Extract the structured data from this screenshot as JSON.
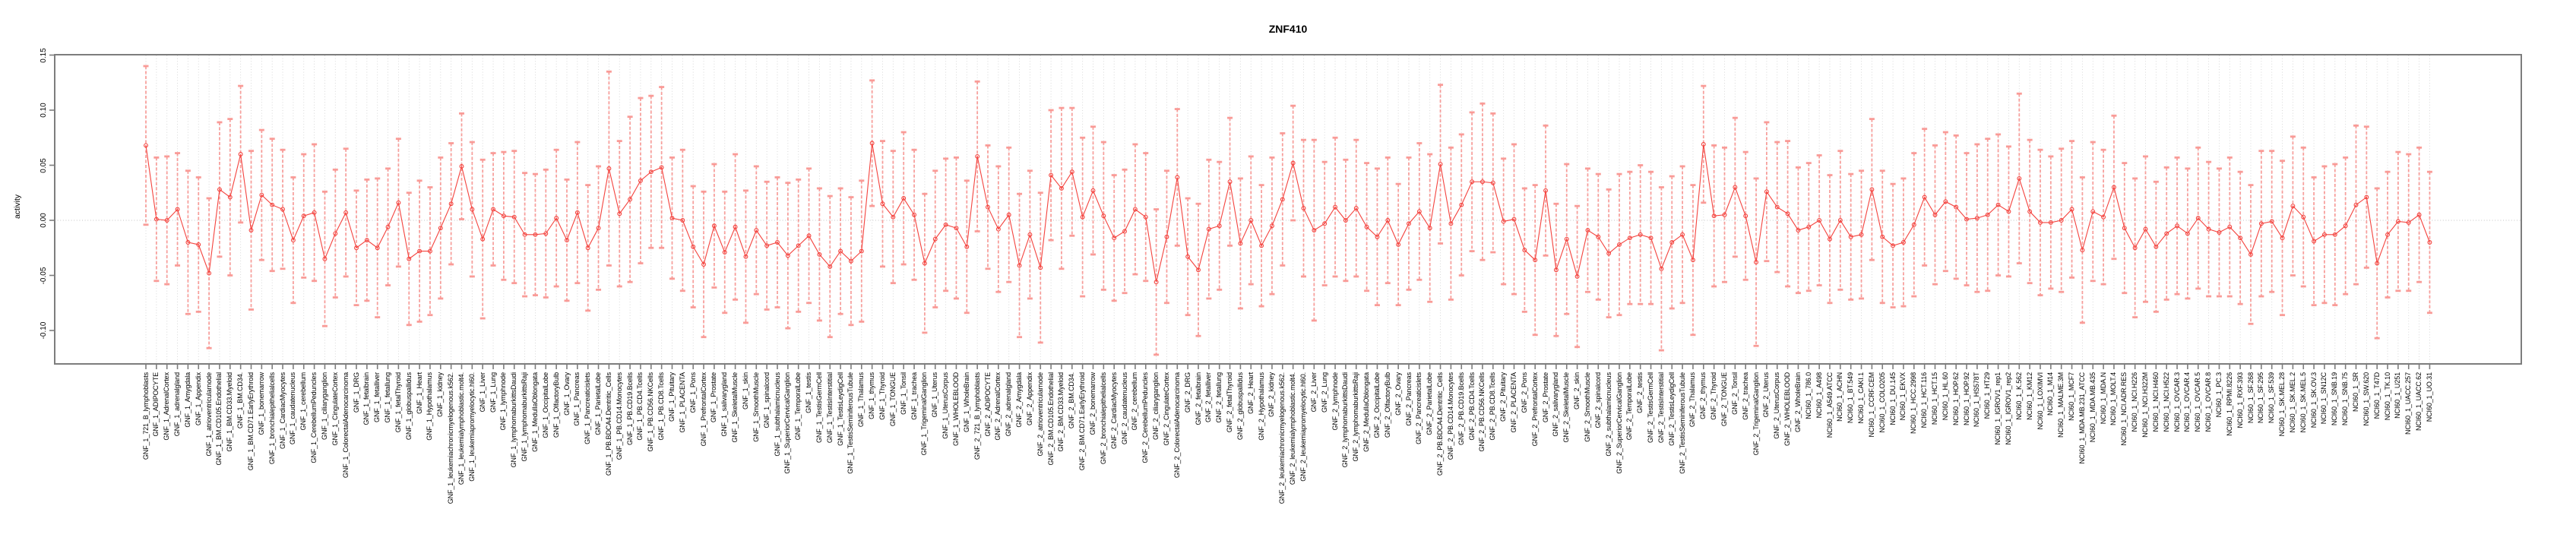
{
  "title": "ZNF410",
  "y_axis": {
    "label": "activity",
    "ticks": [
      {
        "label": "0.15",
        "value": 0.15
      },
      {
        "label": "0.10",
        "value": 0.1
      },
      {
        "label": "0.05",
        "value": 0.05
      },
      {
        "label": "0.00",
        "value": 0.0
      },
      {
        "label": "-0.05",
        "value": -0.05
      },
      {
        "label": "-0.10",
        "value": -0.1
      }
    ]
  },
  "colors": {
    "series_line": "#f4433e",
    "marker_stroke": "#f4433e",
    "error_bar": "rgba(246,100,95,0.60)",
    "error_cap": "rgba(249,151,146,0.95)",
    "grid": "#d4d4d4",
    "zero_line": "#c4c4c4",
    "frame": "#7d7d7d",
    "text": "#000000"
  },
  "chart_data": {
    "type": "line",
    "subtype": "points-with-error-bars",
    "title": "ZNF410",
    "xlabel": "",
    "ylabel": "activity",
    "ylim": [
      -0.13,
      0.15
    ],
    "grid": "dotted vertical line per category; dotted horizontal line at y=0",
    "legend_position": "none",
    "categories": [
      "GNF_1_721_B_lymphoblasts",
      "GNF_1_ADIPOCYTE",
      "GNF_1_AdrenalCortex",
      "GNF_1_adrenalgland",
      "GNF_1_Amygdala",
      "GNF_1_Appendix",
      "GNF_1_atrioventricularnode",
      "GNF_1_BM.CD105.Endothelial",
      "GNF_1_BM.CD33.Myeloid",
      "GNF_1_BM.CD34.",
      "GNF_1_BM.CD71.EarlyErythroid",
      "GNF_1_bonemarrow",
      "GNF_1_bronchialepithelialcells",
      "GNF_1_CardiacMyocytes",
      "GNF_1_caudatenucleus",
      "GNF_1_cerebellum",
      "GNF_1_CerebellumPeduncles",
      "GNF_1_ciliaryganglion",
      "GNF_1_CingulateCortex",
      "GNF_1_ColorectalAdenocarcinoma",
      "GNF_1_DRG",
      "GNF_1_fetalbrain",
      "GNF_1_fetalliver",
      "GNF_1_fetallung",
      "GNF_1_fetalThyroid",
      "GNF_1_globuspallidus",
      "GNF_1_Heart",
      "GNF_1_Hypothalamus",
      "GNF_1_kidney",
      "GNF_1_leukemiachronicmyelogenous.k562.",
      "GNF_1_leukemialymphoblastic.molt4.",
      "GNF_1_leukemiapromyelocytic.hl60.",
      "GNF_1_Liver",
      "GNF_1_Lung",
      "GNF_1_lymphnode",
      "GNF_1_lymphomaburkittsDaudi",
      "GNF_1_lymphomaburkittsRaji",
      "GNF_1_MedullaOblongata",
      "GNF_1_OccipitalLobe",
      "GNF_1_OlfactoryBulb",
      "GNF_1_Ovary",
      "GNF_1_Pancreas",
      "GNF_1_Pancreaticislets",
      "GNF_1_ParietalLobe",
      "GNF_1_PB.BDCA4.Dentritic_Cells",
      "GNF_1_PB.CD14.Monocytes",
      "GNF_1_PB.CD19.Bcells",
      "GNF_1_PB.CD4.Tcells",
      "GNF_1_PB.CD56.NKCells",
      "GNF_1_PB.CD8.Tcells",
      "GNF_1_Pituitary",
      "GNF_1_PLACENTA",
      "GNF_1_Pons",
      "GNF_1_PrefrontalCortex",
      "GNF_1_Prostate",
      "GNF_1_salivarygland",
      "GNF_1_SkeletalMuscle",
      "GNF_1_skin",
      "GNF_1_SmoothMuscle",
      "GNF_1_spinalcord",
      "GNF_1_subthalamicnucleus",
      "GNF_1_SuperiorCervicalGanglion",
      "GNF_1_TemporalLobe",
      "GNF_1_testis",
      "GNF_1_TestisGermCell",
      "GNF_1_TestisInterstitial",
      "GNF_1_TestisLeydigCell",
      "GNF_1_TestisSeminiferousTubule",
      "GNF_1_Thalamus",
      "GNF_1_thymus",
      "GNF_1_Thyroid",
      "GNF_1_TONGUE",
      "GNF_1_Tonsil",
      "GNF_1_trachea",
      "GNF_1_TrigeminalGanglion",
      "GNF_1_Uterus",
      "GNF_1_UterusCorpus",
      "GNF_1_WHOLEBLOOD",
      "GNF_1_WholeBrain",
      "GNF_2_721_B_lymphoblasts",
      "GNF_2_ADIPOCYTE",
      "GNF_2_AdrenalCortex",
      "GNF_2_adrenalgland",
      "GNF_2_Amygdala",
      "GNF_2_Appendix",
      "GNF_2_atrioventricularnode",
      "GNF_2_BM.CD105.Endothelial",
      "GNF_2_BM.CD33.Myeloid",
      "GNF_2_BM.CD34.",
      "GNF_2_BM.CD71.EarlyErythroid",
      "GNF_2_bonemarrow",
      "GNF_2_bronchialepithelialcells",
      "GNF_2_CardiacMyocytes",
      "GNF_2_caudatenucleus",
      "GNF_2_cerebellum",
      "GNF_2_CerebellumPeduncles",
      "GNF_2_ciliaryganglion",
      "GNF_2_CingulateCortex",
      "GNF_2_ColorectalAdenocarcinoma",
      "GNF_2_DRG",
      "GNF_2_fetalbrain",
      "GNF_2_fetalliver",
      "GNF_2_fetallung",
      "GNF_2_fetalThyroid",
      "GNF_2_globuspallidus",
      "GNF_2_Heart",
      "GNF_2_Hypothalamus",
      "GNF_2_kidney",
      "GNF_2_leukemiachronicmyelogenous.k562.",
      "GNF_2_leukemialymphoblastic.molt4.",
      "GNF_2_leukemiapromyelocytic.hl60.",
      "GNF_2_Liver",
      "GNF_2_Lung",
      "GNF_2_lymphnode",
      "GNF_2_lymphomaburkittsDaudi",
      "GNF_2_lymphomaburkittsRaji",
      "GNF_2_MedullaOblongata",
      "GNF_2_OccipitalLobe",
      "GNF_2_OlfactoryBulb",
      "GNF_2_Ovary",
      "GNF_2_Pancreas",
      "GNF_2_Pancreaticislets",
      "GNF_2_ParietalLobe",
      "GNF_2_PB.BDCA4.Dentritic_Cells",
      "GNF_2_PB.CD14.Monocytes",
      "GNF_2_PB.CD19.Bcells",
      "GNF_2_PB.CD4.Tcells",
      "GNF_2_PB.CD56.NKCells",
      "GNF_2_PB.CD8.Tcells",
      "GNF_2_Pituitary",
      "GNF_2_PLACENTA",
      "GNF_2_Pons",
      "GNF_2_PrefrontalCortex",
      "GNF_2_Prostate",
      "GNF_2_salivarygland",
      "GNF_2_SkeletalMuscle",
      "GNF_2_skin",
      "GNF_2_SmoothMuscle",
      "GNF_2_spinalcord",
      "GNF_2_subthalamicnucleus",
      "GNF_2_SuperiorCervicalGanglion",
      "GNF_2_TemporalLobe",
      "GNF_2_testis",
      "GNF_2_TestisGermCell",
      "GNF_2_TestisInterstitial",
      "GNF_2_TestisLeydigCell",
      "GNF_2_TestisSeminiferousTubule",
      "GNF_2_Thalamus",
      "GNF_2_thymus",
      "GNF_2_Thyroid",
      "GNF_2_TONGUE",
      "GNF_2_Tonsil",
      "GNF_2_trachea",
      "GNF_2_TrigeminalGanglion",
      "GNF_2_Uterus",
      "GNF_2_UterusCorpus",
      "GNF_2_WHOLEBLOOD",
      "GNF_2_WholeBrain",
      "NCI60_1_786.0",
      "NCI60_1_A498",
      "NCI60_1_A549.ATCC",
      "NCI60_1_ACHN",
      "NCI60_1_BT.549",
      "NCI60_1_CAKI.1",
      "NCI60_1_CCRF.CEM",
      "NCI60_1_COLO205",
      "NCI60_1_DU.145",
      "NCI60_1_EKVX",
      "NCI60_1_HCC.2998",
      "NCI60_1_HCT.116",
      "NCI60_1_HCT.15",
      "NCI60_1_HL.60",
      "NCI60_1_HOP.62",
      "NCI60_1_HOP.92",
      "NCI60_1_HS578T",
      "NCI60_1_HT29",
      "NCI60_1_IGROV1_rep1",
      "NCI60_1_IGROV1_rep2",
      "NCI60_1_K.562",
      "NCI60_1_KM12",
      "NCI60_1_LOXIMVI",
      "NCI60_1_M14",
      "NCI60_1_MALME.3M",
      "NCI60_1_MCF7",
      "NCI60_1_MDA.MB.231_ATCC",
      "NCI60_1_MDA.MB.435",
      "NCI60_1_MDA.N",
      "NCI60_1_MOLT.4",
      "NCI60_1_NCI.ADR.RES",
      "NCI60_1_NCI.H226",
      "NCI60_1_NCI.H322M",
      "NCI60_1_NCI.H460",
      "NCI60_1_NCI.H522",
      "NCI60_1_OVCAR.3",
      "NCI60_1_OVCAR.4",
      "NCI60_1_OVCAR.5",
      "NCI60_1_OVCAR.8",
      "NCI60_1_PC.3",
      "NCI60_1_RPMI.8226",
      "NCI60_1_RXF.393",
      "NCI60_1_SF.268",
      "NCI60_1_SF.295",
      "NCI60_1_SF.539",
      "NCI60_1_SK.MEL.28",
      "NCI60_1_SK.MEL.2",
      "NCI60_1_SK.MEL.5",
      "NCI60_1_SK.OV.3",
      "NCI60_1_SN12C",
      "NCI60_1_SNB.19",
      "NCI60_1_SNB.75",
      "NCI60_1_SR",
      "NCI60_1_SW.620",
      "NCI60_1_T47D",
      "NCI60_1_TK.10",
      "NCI60_1_U251",
      "NCI60_1_UACC.257",
      "NCI60_1_UACC.62",
      "NCI60_1_UO.31"
    ],
    "values": [
      0.068,
      0.001,
      0.0,
      0.01,
      -0.02,
      -0.022,
      -0.048,
      0.028,
      0.021,
      0.06,
      -0.009,
      0.023,
      0.014,
      0.01,
      -0.018,
      0.004,
      0.007,
      -0.035,
      -0.012,
      0.007,
      -0.025,
      -0.018,
      -0.025,
      -0.006,
      0.016,
      -0.035,
      -0.028,
      -0.028,
      -0.007,
      0.015,
      0.049,
      0.01,
      -0.017,
      0.01,
      0.004,
      0.003,
      -0.013,
      -0.013,
      -0.012,
      0.002,
      -0.018,
      0.007,
      -0.025,
      -0.007,
      0.047,
      0.006,
      0.019,
      0.036,
      0.044,
      0.048,
      0.002,
      0.0,
      -0.024,
      -0.04,
      -0.005,
      -0.029,
      -0.006,
      -0.033,
      -0.009,
      -0.023,
      -0.02,
      -0.032,
      -0.023,
      -0.014,
      -0.031,
      -0.042,
      -0.028,
      -0.037,
      -0.028,
      0.07,
      0.015,
      0.003,
      0.02,
      0.005,
      -0.039,
      -0.017,
      -0.004,
      -0.007,
      -0.024,
      0.058,
      0.012,
      -0.008,
      0.005,
      -0.041,
      -0.013,
      -0.043,
      0.041,
      0.029,
      0.044,
      0.003,
      0.027,
      0.004,
      -0.016,
      -0.01,
      0.01,
      0.003,
      -0.056,
      -0.015,
      0.039,
      -0.033,
      -0.045,
      -0.008,
      -0.005,
      0.035,
      -0.021,
      0.0,
      -0.023,
      -0.005,
      0.019,
      0.052,
      0.011,
      -0.009,
      -0.003,
      0.012,
      0.0,
      0.011,
      -0.006,
      -0.015,
      0.0,
      -0.022,
      -0.003,
      0.008,
      -0.007,
      0.051,
      -0.003,
      0.014,
      0.035,
      0.035,
      0.034,
      -0.001,
      0.001,
      -0.027,
      -0.036,
      0.027,
      -0.045,
      -0.017,
      -0.051,
      -0.009,
      -0.015,
      -0.03,
      -0.022,
      -0.016,
      -0.013,
      -0.016,
      -0.044,
      -0.02,
      -0.013,
      -0.036,
      0.069,
      0.004,
      0.005,
      0.03,
      0.004,
      -0.038,
      0.026,
      0.012,
      0.006,
      -0.009,
      -0.006,
      0.0,
      -0.017,
      0.0,
      -0.015,
      -0.013,
      0.028,
      -0.015,
      -0.023,
      -0.02,
      -0.004,
      0.021,
      0.005,
      0.017,
      0.012,
      0.001,
      0.002,
      0.005,
      0.014,
      0.008,
      0.038,
      0.008,
      -0.002,
      -0.002,
      0.0,
      0.01,
      -0.027,
      0.008,
      0.003,
      0.03,
      -0.007,
      -0.025,
      -0.008,
      -0.024,
      -0.012,
      -0.005,
      -0.012,
      0.002,
      -0.008,
      -0.011,
      -0.006,
      -0.016,
      -0.031,
      -0.003,
      -0.001,
      -0.016,
      0.013,
      0.003,
      -0.019,
      -0.013,
      -0.013,
      -0.005,
      0.014,
      0.021,
      -0.039,
      -0.013,
      -0.001,
      -0.002,
      0.005,
      -0.02
    ],
    "error": [
      0.072,
      0.056,
      0.058,
      0.051,
      0.065,
      0.061,
      0.068,
      0.061,
      0.071,
      0.062,
      0.072,
      0.059,
      0.06,
      0.054,
      0.057,
      0.056,
      0.062,
      0.061,
      0.058,
      0.058,
      0.052,
      0.055,
      0.063,
      0.053,
      0.058,
      0.06,
      0.064,
      0.058,
      0.064,
      0.055,
      0.048,
      0.061,
      0.072,
      0.051,
      0.058,
      0.06,
      0.056,
      0.055,
      0.058,
      0.062,
      0.055,
      0.064,
      0.057,
      0.056,
      0.088,
      0.066,
      0.075,
      0.075,
      0.069,
      0.073,
      0.055,
      0.064,
      0.055,
      0.066,
      0.056,
      0.055,
      0.066,
      0.06,
      0.058,
      0.058,
      0.059,
      0.066,
      0.06,
      0.061,
      0.06,
      0.064,
      0.057,
      0.058,
      0.064,
      0.057,
      0.057,
      0.06,
      0.06,
      0.059,
      0.063,
      0.062,
      0.06,
      0.064,
      0.06,
      0.068,
      0.056,
      0.057,
      0.061,
      0.065,
      0.058,
      0.068,
      0.059,
      0.073,
      0.058,
      0.072,
      0.058,
      0.067,
      0.057,
      0.056,
      0.059,
      0.058,
      0.066,
      0.06,
      0.062,
      0.053,
      0.06,
      0.063,
      0.058,
      0.058,
      0.059,
      0.058,
      0.055,
      0.062,
      0.06,
      0.052,
      0.062,
      0.082,
      0.056,
      0.063,
      0.055,
      0.062,
      0.058,
      0.062,
      0.057,
      0.055,
      0.06,
      0.062,
      0.067,
      0.072,
      0.069,
      0.064,
      0.063,
      0.071,
      0.063,
      0.057,
      0.068,
      0.056,
      0.068,
      0.059,
      0.06,
      0.068,
      0.064,
      0.056,
      0.057,
      0.058,
      0.064,
      0.06,
      0.063,
      0.06,
      0.074,
      0.06,
      0.062,
      0.068,
      0.053,
      0.064,
      0.061,
      0.063,
      0.058,
      0.076,
      0.063,
      0.059,
      0.066,
      0.057,
      0.058,
      0.059,
      0.058,
      0.063,
      0.057,
      0.058,
      0.064,
      0.06,
      0.056,
      0.058,
      0.065,
      0.062,
      0.063,
      0.063,
      0.065,
      0.06,
      0.067,
      0.069,
      0.064,
      0.059,
      0.077,
      0.065,
      0.066,
      0.06,
      0.065,
      0.062,
      0.066,
      0.063,
      0.061,
      0.065,
      0.059,
      0.063,
      0.066,
      0.059,
      0.06,
      0.062,
      0.059,
      0.064,
      0.061,
      0.058,
      0.063,
      0.06,
      0.063,
      0.066,
      0.064,
      0.07,
      0.063,
      0.063,
      0.058,
      0.062,
      0.064,
      0.062,
      0.072,
      0.064,
      0.068,
      0.057,
      0.063,
      0.062,
      0.061,
      0.064
    ]
  }
}
